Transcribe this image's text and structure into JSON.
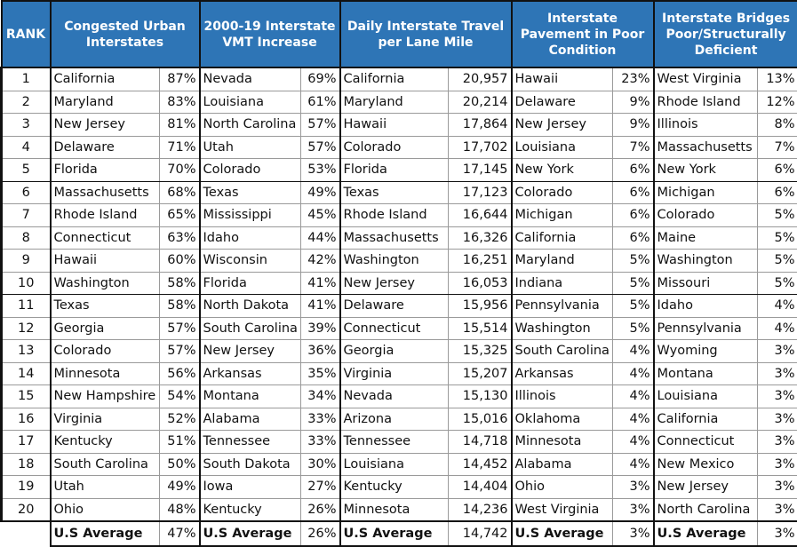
{
  "header": {
    "rank": "RANK",
    "columns": [
      "Congested Urban Interstates",
      "2000-19 Interstate VMT Increase",
      "Daily Interstate Travel per Lane Mile",
      "Interstate Pavement in Poor Condition",
      "Interstate Bridges Poor/Structurally Deficient"
    ]
  },
  "colors": {
    "header_bg": "#2e75b6",
    "header_text": "#ffffff"
  },
  "rows": [
    {
      "rank": "1",
      "c": [
        [
          "California",
          "87%"
        ],
        [
          "Nevada",
          "69%"
        ],
        [
          "California",
          "20,957"
        ],
        [
          "Hawaii",
          "23%"
        ],
        [
          "West Virginia",
          "13%"
        ]
      ]
    },
    {
      "rank": "2",
      "c": [
        [
          "Maryland",
          "83%"
        ],
        [
          "Louisiana",
          "61%"
        ],
        [
          "Maryland",
          "20,214"
        ],
        [
          "Delaware",
          "9%"
        ],
        [
          "Rhode Island",
          "12%"
        ]
      ]
    },
    {
      "rank": "3",
      "c": [
        [
          "New Jersey",
          "81%"
        ],
        [
          "North Carolina",
          "57%"
        ],
        [
          "Hawaii",
          "17,864"
        ],
        [
          "New Jersey",
          "9%"
        ],
        [
          "Illinois",
          "8%"
        ]
      ]
    },
    {
      "rank": "4",
      "c": [
        [
          "Delaware",
          "71%"
        ],
        [
          "Utah",
          "57%"
        ],
        [
          "Colorado",
          "17,702"
        ],
        [
          "Louisiana",
          "7%"
        ],
        [
          "Massachusetts",
          "7%"
        ]
      ]
    },
    {
      "rank": "5",
      "c": [
        [
          "Florida",
          "70%"
        ],
        [
          "Colorado",
          "53%"
        ],
        [
          "Florida",
          "17,145"
        ],
        [
          "New York",
          "6%"
        ],
        [
          "New York",
          "6%"
        ]
      ]
    },
    {
      "rank": "6",
      "c": [
        [
          "Massachusetts",
          "68%"
        ],
        [
          "Texas",
          "49%"
        ],
        [
          "Texas",
          "17,123"
        ],
        [
          "Colorado",
          "6%"
        ],
        [
          "Michigan",
          "6%"
        ]
      ]
    },
    {
      "rank": "7",
      "c": [
        [
          "Rhode Island",
          "65%"
        ],
        [
          "Mississippi",
          "45%"
        ],
        [
          "Rhode Island",
          "16,644"
        ],
        [
          "Michigan",
          "6%"
        ],
        [
          "Colorado",
          "5%"
        ]
      ]
    },
    {
      "rank": "8",
      "c": [
        [
          "Connecticut",
          "63%"
        ],
        [
          "Idaho",
          "44%"
        ],
        [
          "Massachusetts",
          "16,326"
        ],
        [
          "California",
          "6%"
        ],
        [
          "Maine",
          "5%"
        ]
      ]
    },
    {
      "rank": "9",
      "c": [
        [
          "Hawaii",
          "60%"
        ],
        [
          "Wisconsin",
          "42%"
        ],
        [
          "Washington",
          "16,251"
        ],
        [
          "Maryland",
          "5%"
        ],
        [
          "Washington",
          "5%"
        ]
      ]
    },
    {
      "rank": "10",
      "c": [
        [
          "Washington",
          "58%"
        ],
        [
          "Florida",
          "41%"
        ],
        [
          "New Jersey",
          "16,053"
        ],
        [
          "Indiana",
          "5%"
        ],
        [
          "Missouri",
          "5%"
        ]
      ]
    },
    {
      "rank": "11",
      "c": [
        [
          "Texas",
          "58%"
        ],
        [
          "North Dakota",
          "41%"
        ],
        [
          "Delaware",
          "15,956"
        ],
        [
          "Pennsylvania",
          "5%"
        ],
        [
          "Idaho",
          "4%"
        ]
      ]
    },
    {
      "rank": "12",
      "c": [
        [
          "Georgia",
          "57%"
        ],
        [
          "South Carolina",
          "39%"
        ],
        [
          "Connecticut",
          "15,514"
        ],
        [
          "Washington",
          "5%"
        ],
        [
          "Pennsylvania",
          "4%"
        ]
      ]
    },
    {
      "rank": "13",
      "c": [
        [
          "Colorado",
          "57%"
        ],
        [
          "New Jersey",
          "36%"
        ],
        [
          "Georgia",
          "15,325"
        ],
        [
          "South Carolina",
          "4%"
        ],
        [
          "Wyoming",
          "3%"
        ]
      ]
    },
    {
      "rank": "14",
      "c": [
        [
          "Minnesota",
          "56%"
        ],
        [
          "Arkansas",
          "35%"
        ],
        [
          "Virginia",
          "15,207"
        ],
        [
          "Arkansas",
          "4%"
        ],
        [
          "Montana",
          "3%"
        ]
      ]
    },
    {
      "rank": "15",
      "c": [
        [
          "New Hampshire",
          "54%"
        ],
        [
          "Montana",
          "34%"
        ],
        [
          "Nevada",
          "15,130"
        ],
        [
          "Illinois",
          "4%"
        ],
        [
          "Louisiana",
          "3%"
        ]
      ]
    },
    {
      "rank": "16",
      "c": [
        [
          "Virginia",
          "52%"
        ],
        [
          "Alabama",
          "33%"
        ],
        [
          "Arizona",
          "15,016"
        ],
        [
          "Oklahoma",
          "4%"
        ],
        [
          "California",
          "3%"
        ]
      ]
    },
    {
      "rank": "17",
      "c": [
        [
          "Kentucky",
          "51%"
        ],
        [
          "Tennessee",
          "33%"
        ],
        [
          "Tennessee",
          "14,718"
        ],
        [
          "Minnesota",
          "4%"
        ],
        [
          "Connecticut",
          "3%"
        ]
      ]
    },
    {
      "rank": "18",
      "c": [
        [
          "South Carolina",
          "50%"
        ],
        [
          "South Dakota",
          "30%"
        ],
        [
          "Louisiana",
          "14,452"
        ],
        [
          "Alabama",
          "4%"
        ],
        [
          "New Mexico",
          "3%"
        ]
      ]
    },
    {
      "rank": "19",
      "c": [
        [
          "Utah",
          "49%"
        ],
        [
          "Iowa",
          "27%"
        ],
        [
          "Kentucky",
          "14,404"
        ],
        [
          "Ohio",
          "3%"
        ],
        [
          "New Jersey",
          "3%"
        ]
      ]
    },
    {
      "rank": "20",
      "c": [
        [
          "Ohio",
          "48%"
        ],
        [
          "Kentucky",
          "26%"
        ],
        [
          "Minnesota",
          "14,236"
        ],
        [
          "West Virginia",
          "3%"
        ],
        [
          "North Carolina",
          "3%"
        ]
      ]
    }
  ],
  "average": {
    "label": "U.S Average",
    "values": [
      "47%",
      "26%",
      "14,742",
      "3%",
      "3%"
    ]
  }
}
